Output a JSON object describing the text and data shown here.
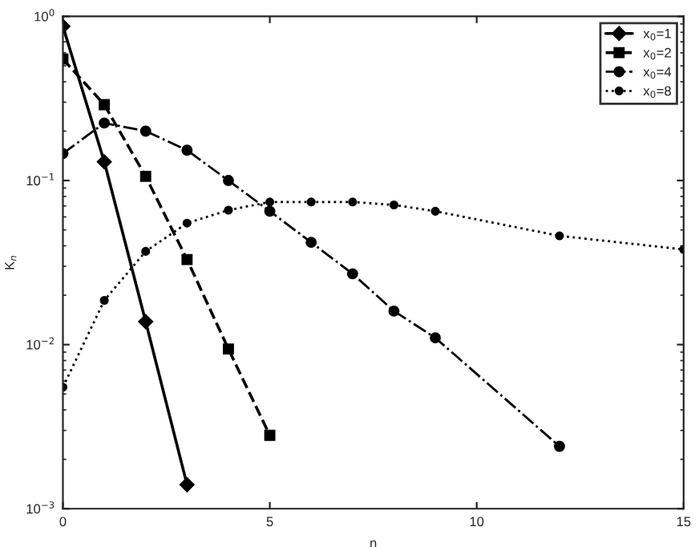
{
  "chart_data": {
    "type": "line",
    "xlabel": "n",
    "ylabel": "K$_{n}$",
    "log": "y",
    "grid": false,
    "legend": "top right",
    "xlim": [
      0,
      15
    ],
    "xticks": [
      0,
      5,
      10,
      15
    ],
    "ylim": [
      0.001,
      1
    ],
    "yticks": [
      {
        "value": 0.001,
        "label": "10$^{−3}$"
      },
      {
        "value": 0.01,
        "label": "10$^{−2}$"
      },
      {
        "value": 0.1,
        "label": "10$^{−1}$"
      },
      {
        "value": 1,
        "label": "10$^{0}$"
      }
    ],
    "series": [
      {
        "name": "x$_{0}$=1",
        "color": "#000000",
        "marker": "diamond",
        "line_style": "solid",
        "x": [
          0,
          1,
          2,
          3
        ],
        "values": [
          0.87,
          0.13,
          0.0138,
          0.0014
        ]
      },
      {
        "name": "x$_{0}$=2",
        "color": "#000000",
        "marker": "square",
        "line_style": "dashed",
        "x": [
          0,
          1,
          2,
          3,
          4,
          5
        ],
        "values": [
          0.55,
          0.29,
          0.106,
          0.033,
          0.0094,
          0.0028
        ]
      },
      {
        "name": "x$_{0}$=4",
        "color": "#000000",
        "marker": "circle",
        "line_style": "dashdot",
        "x": [
          0,
          1,
          2,
          3,
          4,
          5,
          6,
          7,
          8,
          9,
          12
        ],
        "values": [
          0.146,
          0.224,
          0.2,
          0.153,
          0.1,
          0.065,
          0.042,
          0.027,
          0.016,
          0.011,
          0.0024
        ]
      },
      {
        "name": "x$_{0}$=8",
        "color": "#000000",
        "marker": "circle",
        "line_style": "dotted",
        "x": [
          0,
          1,
          2,
          3,
          4,
          5,
          6,
          7,
          8,
          9,
          12,
          15
        ],
        "values": [
          0.0055,
          0.0186,
          0.037,
          0.055,
          0.066,
          0.074,
          0.074,
          0.074,
          0.071,
          0.065,
          0.046,
          0.038
        ]
      }
    ]
  }
}
